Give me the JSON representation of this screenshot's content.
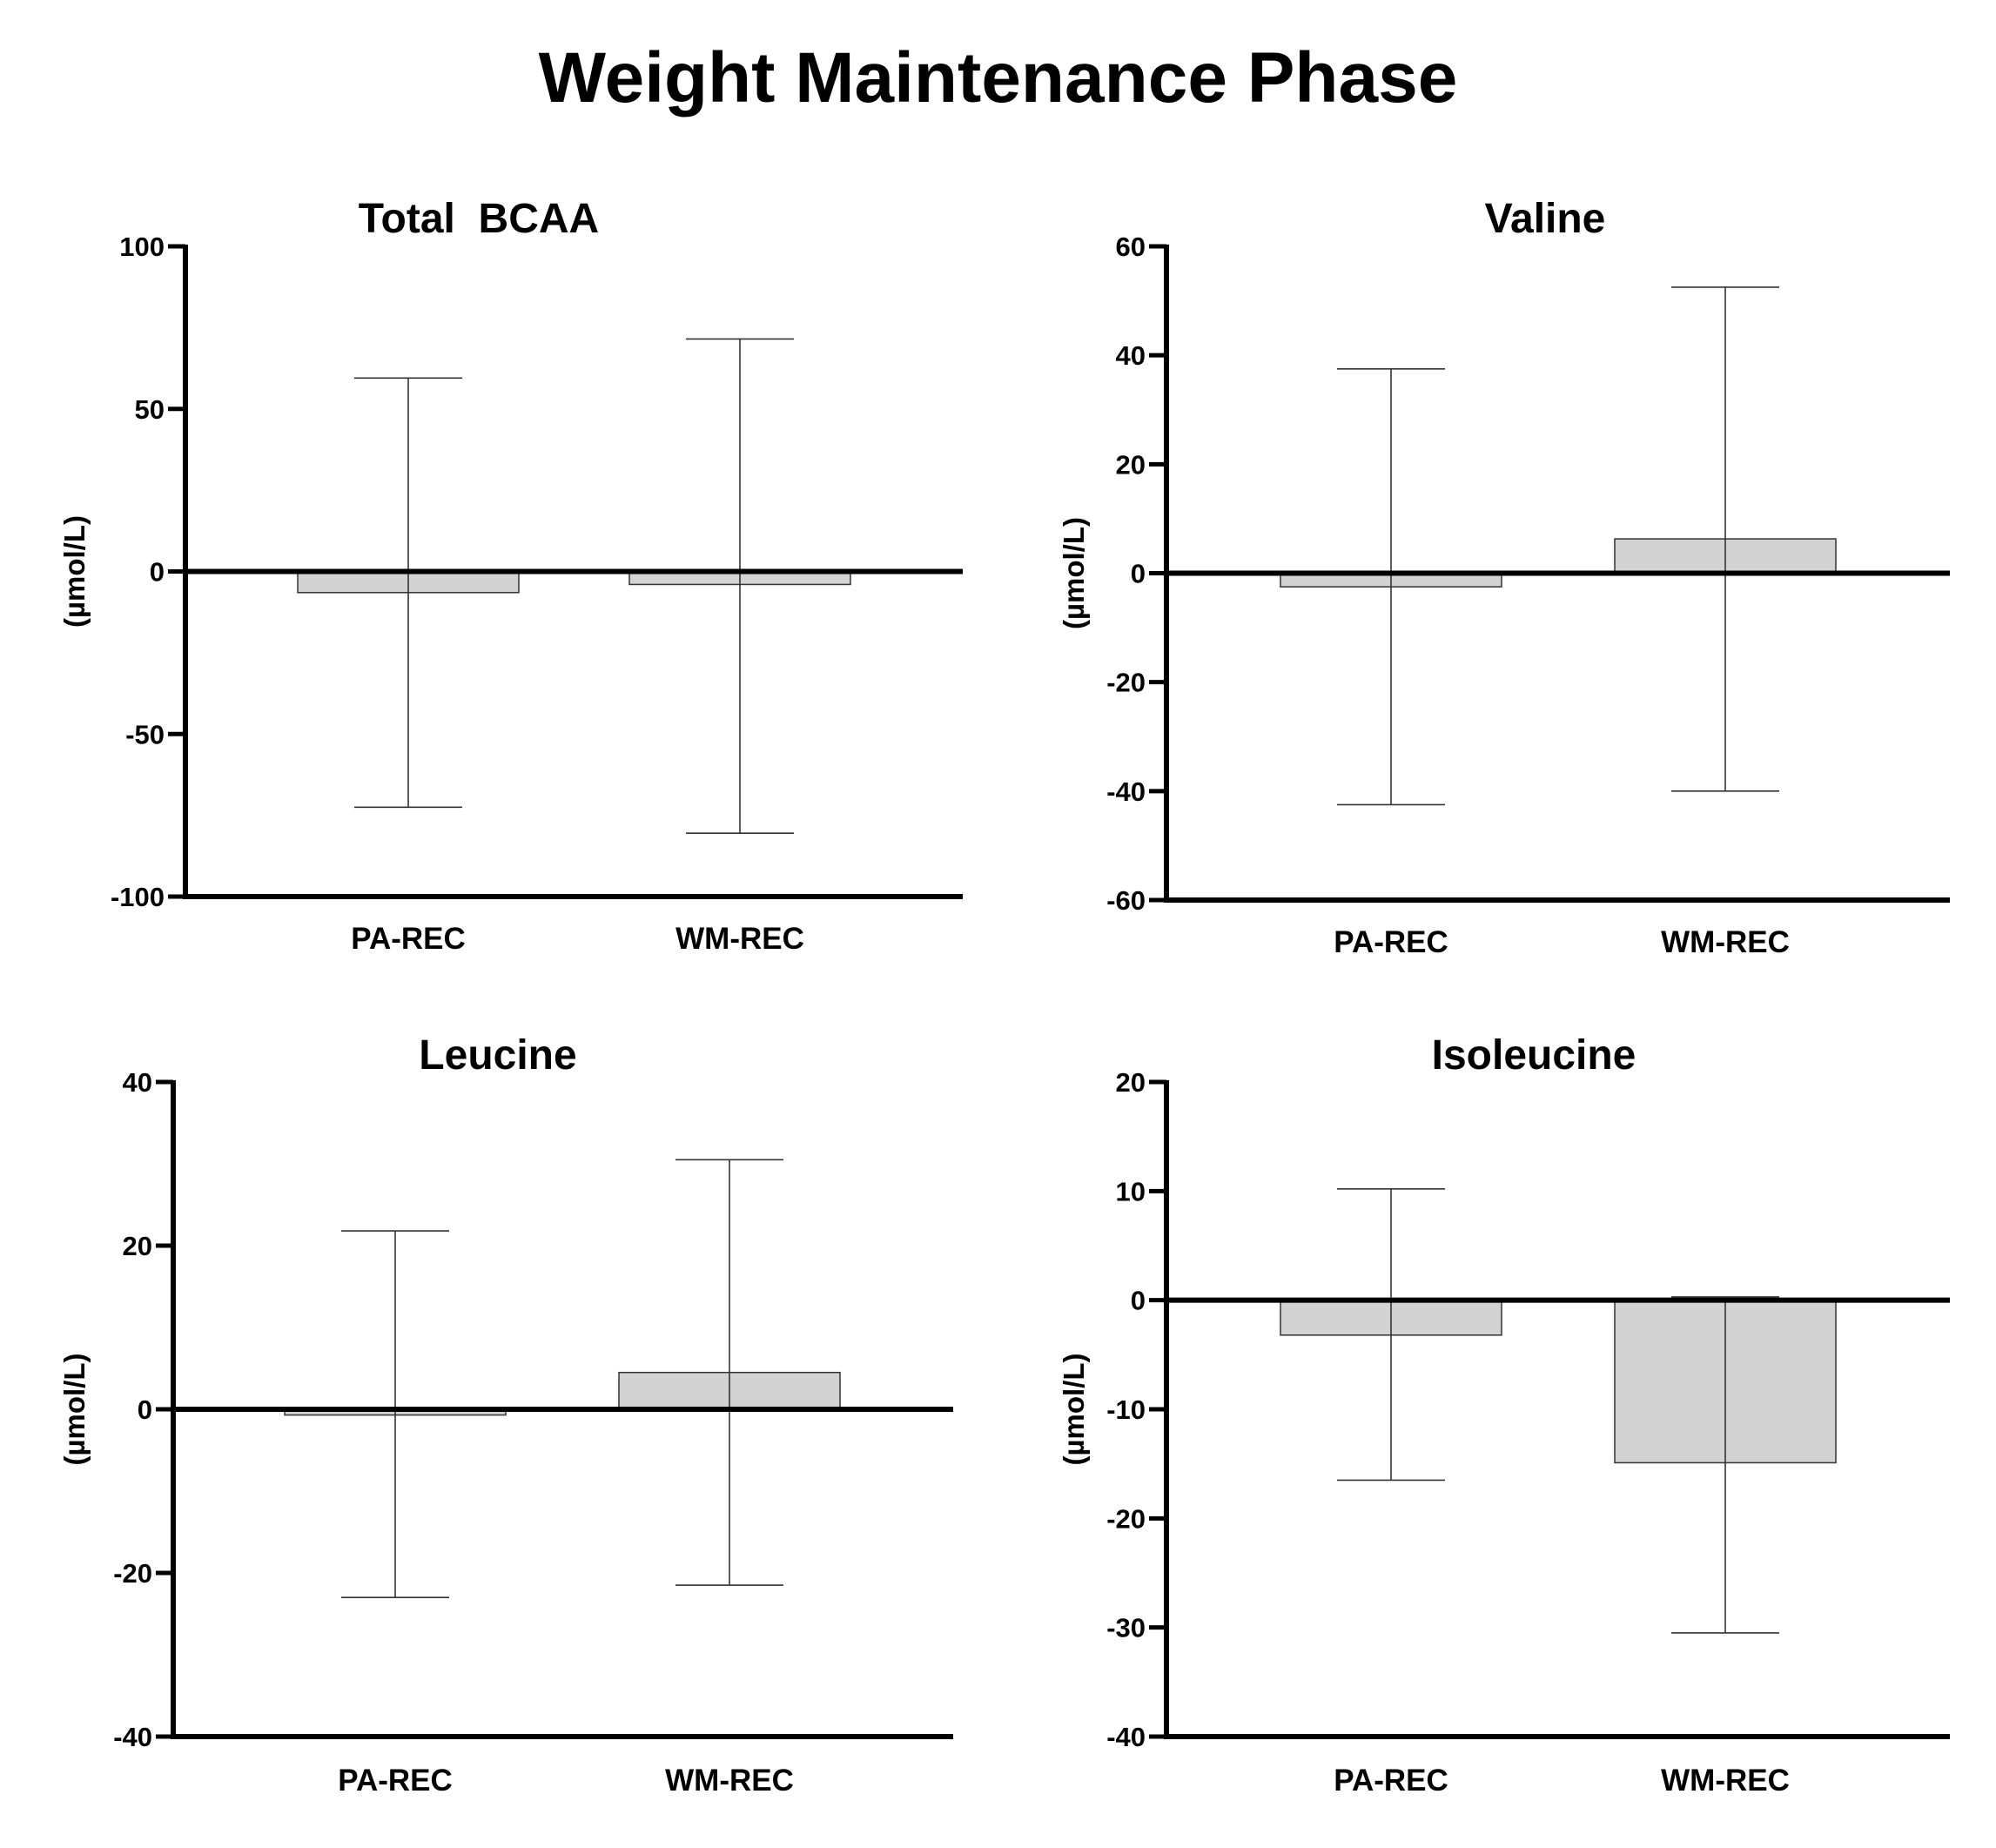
{
  "figure_title": "Weight Maintenance Phase",
  "colors": {
    "bar_fill": "#d3d3d3",
    "bar_stroke": "#333333",
    "axis": "#000000",
    "error_bar": "#333333"
  },
  "chart_data": [
    {
      "type": "bar",
      "title": "Total  BCAA",
      "ylabel": "(µmol/L)",
      "xlabel": "",
      "categories": [
        "PA-REC",
        "WM-REC"
      ],
      "values": [
        -6.5,
        -4.0
      ],
      "error_low": [
        -72.5,
        -80.5
      ],
      "error_high": [
        59.5,
        71.5
      ],
      "ylim": [
        -100,
        100
      ],
      "yticks": [
        100,
        50,
        0,
        -50,
        -100
      ],
      "ytick_labels": [
        "100",
        "50",
        "0",
        "-50",
        "-100"
      ],
      "grid": false
    },
    {
      "type": "bar",
      "title": "Valine",
      "ylabel": "(µmol/L)",
      "xlabel": "",
      "categories": [
        "PA-REC",
        "WM-REC"
      ],
      "values": [
        -2.5,
        6.3
      ],
      "error_low": [
        -42.5,
        -40.0
      ],
      "error_high": [
        37.5,
        52.5
      ],
      "ylim": [
        -60,
        60
      ],
      "yticks": [
        60,
        40,
        20,
        0,
        -20,
        -40,
        -60
      ],
      "ytick_labels": [
        "60",
        "40",
        "20",
        "0",
        "-20",
        "-40",
        "-60"
      ],
      "grid": false
    },
    {
      "type": "bar",
      "title": "Leucine",
      "ylabel": "(µmol/L)",
      "xlabel": "",
      "categories": [
        "PA-REC",
        "WM-REC"
      ],
      "values": [
        -0.7,
        4.5
      ],
      "error_low": [
        -23.0,
        -21.5
      ],
      "error_high": [
        21.8,
        30.5
      ],
      "ylim": [
        -40,
        40
      ],
      "yticks": [
        40,
        20,
        0,
        -20,
        -40
      ],
      "ytick_labels": [
        "40",
        "20",
        "0",
        "-20",
        "-40"
      ],
      "grid": false
    },
    {
      "type": "bar",
      "title": "Isoleucine",
      "ylabel": "(µmol/L)",
      "xlabel": "",
      "categories": [
        "PA-REC",
        "WM-REC"
      ],
      "values": [
        -3.2,
        -14.9
      ],
      "error_low": [
        -16.5,
        -30.5
      ],
      "error_high": [
        10.2,
        0.3
      ],
      "ylim": [
        -40,
        20
      ],
      "yticks": [
        20,
        10,
        0,
        -10,
        -20,
        -30,
        -40
      ],
      "ytick_labels": [
        "20",
        "10",
        "0",
        "-10",
        "-20",
        "-30",
        "-40"
      ],
      "grid": false
    }
  ]
}
